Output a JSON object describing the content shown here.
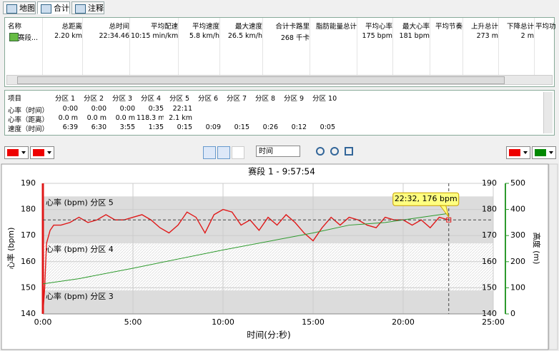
{
  "tabs": [
    "地图",
    "合计",
    "注释"
  ],
  "summary_table": {
    "headers": [
      "名称",
      "总距离",
      "总时间",
      "平均配速",
      "平均速度",
      "最大速度",
      "合计卡路里",
      "脂肪能量总计",
      "平均心率",
      "最大心率",
      "平均节奏",
      "上升总计",
      "下降总计",
      "平均功"
    ],
    "rows": [
      [
        "赛段...",
        "2.20 km",
        "22:34.46",
        "10:15 min/km",
        "5.8 km/h",
        "26.5 km/h",
        "268 千卡",
        null,
        "175 bpm",
        "181 bpm",
        null,
        "273 m",
        "2 m",
        null
      ]
    ]
  },
  "zone_table": {
    "headers": [
      "项目",
      "分区 1",
      "分区 2",
      "分区 3",
      "分区 4",
      "分区 5",
      "分区 6",
      "分区 7",
      "分区 8",
      "分区 9",
      "分区 10"
    ],
    "rows": [
      [
        "心率（时间）",
        "0:00",
        "0:00",
        "0:00",
        "0:35",
        "22:11",
        null,
        null,
        null,
        null,
        null
      ],
      [
        "心率（距离）",
        "0.0 m",
        "0.0 m",
        "0.0 m",
        "118.3 m",
        "2.1 km",
        null,
        null,
        null,
        null,
        null
      ],
      [
        "速度（时间）",
        "6:39",
        "6:30",
        "3:55",
        "1:35",
        "0:15",
        "0:09",
        "0:15",
        "0:26",
        "0:12",
        "0:05"
      ]
    ]
  },
  "toolbar": {
    "x_axis_select": "时间"
  },
  "chart_data": {
    "type": "line",
    "title": "赛段 1 - 9:57:54",
    "x_label": "时间(分:秒)",
    "y_label": "心率 (bpm)",
    "y2_label": "高度 (m)",
    "xlim": [
      0,
      25
    ],
    "xticks": [
      {
        "value": 0,
        "label": "0:00"
      },
      {
        "value": 5,
        "label": "5:00"
      },
      {
        "value": 10,
        "label": "10:00"
      },
      {
        "value": 15,
        "label": "15:00"
      },
      {
        "value": 20,
        "label": "20:00"
      },
      {
        "value": 25,
        "label": "25:00"
      }
    ],
    "ylim": [
      140,
      190
    ],
    "yticks": [
      140,
      150,
      160,
      170,
      180,
      190
    ],
    "y2lim": [
      0,
      500
    ],
    "y2ticks": [
      0,
      100,
      200,
      300,
      400,
      500
    ],
    "grid": true,
    "zones": [
      {
        "label": "心率 (bpm) 分区 5",
        "range": [
          167,
          185
        ],
        "style": "solid"
      },
      {
        "label": "心率 (bpm) 分区 4",
        "range": [
          149,
          167
        ],
        "style": "hatched"
      },
      {
        "label": "心率 (bpm) 分区 3",
        "range": [
          140,
          149
        ],
        "style": "solid"
      }
    ],
    "series": [
      {
        "color": "#e01818",
        "x": [
          0,
          0.1,
          0.2,
          0.4,
          0.6,
          1,
          1.5,
          2,
          2.5,
          3,
          3.5,
          4,
          4.5,
          5,
          5.5,
          6,
          6.5,
          7,
          7.5,
          8,
          8.5,
          9,
          9.5,
          10,
          10.5,
          11,
          11.5,
          12,
          12.5,
          13,
          13.5,
          14,
          14.5,
          15,
          15.5,
          16,
          16.5,
          17,
          17.5,
          18,
          18.5,
          19,
          19.5,
          20,
          20.5,
          21,
          21.5,
          22,
          22.53
        ],
        "values": [
          140,
          150,
          167,
          172,
          174,
          174,
          175,
          177,
          175,
          176,
          178,
          176,
          176,
          177,
          178,
          176,
          173,
          171,
          174,
          179,
          177,
          171,
          178,
          180,
          179,
          174,
          176,
          172,
          177,
          174,
          178,
          175,
          171,
          168,
          173,
          177,
          174,
          177,
          176,
          174,
          173,
          177,
          176,
          176,
          174,
          176,
          173,
          177,
          176
        ]
      },
      {
        "color": "#2e9a2e",
        "axis": "y2",
        "x": [
          0,
          2,
          5,
          10,
          15,
          17,
          19,
          21,
          22.53
        ],
        "values": [
          115,
          135,
          175,
          245,
          310,
          340,
          350,
          370,
          385
        ]
      }
    ],
    "cursor": {
      "x": 22.53,
      "y": 176,
      "label": "22:32, 176 bpm"
    }
  }
}
